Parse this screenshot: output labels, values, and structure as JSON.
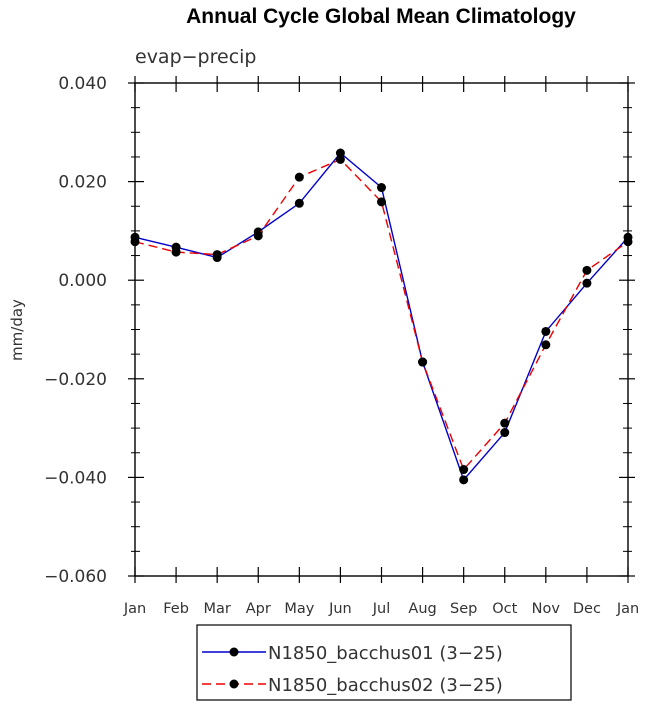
{
  "chart_data": {
    "type": "line",
    "title": "Annual Cycle Global Mean Climatology",
    "subtitle": "evap−precip",
    "xlabel": "",
    "ylabel": "mm/day",
    "categories": [
      "Jan",
      "Feb",
      "Mar",
      "Apr",
      "May",
      "Jun",
      "Jul",
      "Aug",
      "Sep",
      "Oct",
      "Nov",
      "Dec",
      "Jan"
    ],
    "ylim": [
      -0.06,
      0.04
    ],
    "yticks": [
      -0.06,
      -0.04,
      -0.02,
      0.0,
      0.02,
      0.04
    ],
    "ytick_labels": [
      "−0.060",
      "−0.040",
      "−0.020",
      "0.000",
      "0.020",
      "0.040"
    ],
    "grid": false,
    "legend_position": "bottom-center",
    "series": [
      {
        "name": "N1850_bacchus01 (3−25)",
        "color": "#0000cc",
        "dash": "solid",
        "marker": "filled-circle",
        "values": [
          0.0087,
          0.0067,
          0.0046,
          0.0098,
          0.0156,
          0.0258,
          0.0188,
          -0.0166,
          -0.0405,
          -0.0309,
          -0.0104,
          -0.0006,
          0.0087
        ]
      },
      {
        "name": "N1850_bacchus02 (3−25)",
        "color": "#ee0000",
        "dash": "dashed",
        "marker": "filled-circle",
        "values": [
          0.0078,
          0.0057,
          0.0052,
          0.009,
          0.0209,
          0.0245,
          0.0159,
          -0.0166,
          -0.0384,
          -0.029,
          -0.0131,
          0.002,
          0.0078
        ]
      }
    ]
  }
}
